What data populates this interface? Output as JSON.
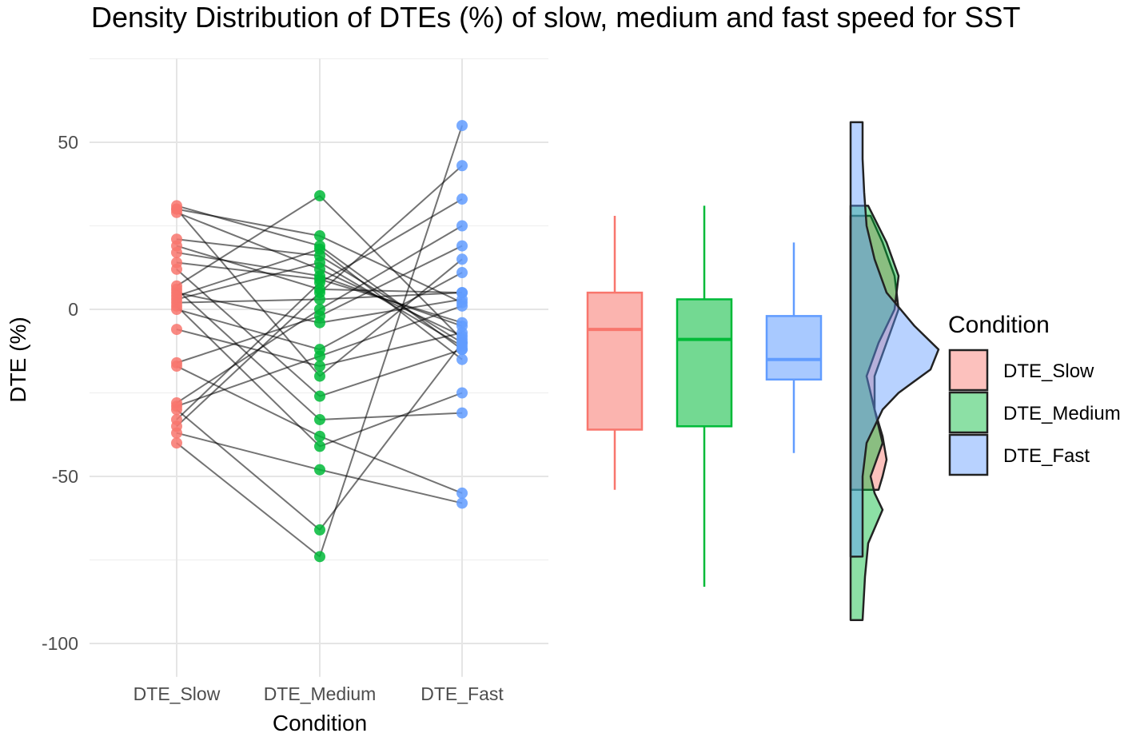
{
  "chart_data": {
    "type": "scatter",
    "title": "Density Distribution of DTEs (%) of slow, medium and fast speed for SST",
    "xlabel": "Condition",
    "ylabel": "DTE (%)",
    "ylim": [
      -110,
      75
    ],
    "yticks": [
      50,
      0,
      -50,
      -100
    ],
    "ytick_labels": [
      "50",
      "0",
      "-50",
      "-100"
    ],
    "categories": [
      "DTE_Slow",
      "DTE_Medium",
      "DTE_Fast"
    ],
    "colors": {
      "DTE_Slow": "#F8766D",
      "DTE_Medium": "#00BA38",
      "DTE_Fast": "#619CFF"
    },
    "legend": {
      "title": "Condition",
      "entries": [
        "DTE_Slow",
        "DTE_Medium",
        "DTE_Fast"
      ],
      "position": "right"
    },
    "paired_observations": [
      {
        "slow": 30,
        "medium": 22,
        "fast": 2
      },
      {
        "slow": 29,
        "medium": 12,
        "fast": -8
      },
      {
        "slow": 31,
        "medium": 19,
        "fast": -12
      },
      {
        "slow": 30,
        "medium": -20,
        "fast": 15
      },
      {
        "slow": 21,
        "medium": 16,
        "fast": -10
      },
      {
        "slow": 19,
        "medium": 6,
        "fast": 5
      },
      {
        "slow": 17,
        "medium": 10,
        "fast": -5
      },
      {
        "slow": 12,
        "medium": -26,
        "fast": -12
      },
      {
        "slow": 7,
        "medium": 34,
        "fast": -9
      },
      {
        "slow": 5,
        "medium": -4,
        "fast": 3
      },
      {
        "slow": 3,
        "medium": 14,
        "fast": -11
      },
      {
        "slow": 0,
        "medium": -12,
        "fast": 11
      },
      {
        "slow": 2,
        "medium": 3,
        "fast": 5
      },
      {
        "slow": -6,
        "medium": -17,
        "fast": -7
      },
      {
        "slow": -16,
        "medium": -2,
        "fast": 19
      },
      {
        "slow": -17,
        "medium": -38,
        "fast": -55
      },
      {
        "slow": -28,
        "medium": 0,
        "fast": 25
      },
      {
        "slow": -30,
        "medium": -66,
        "fast": -10
      },
      {
        "slow": -33,
        "medium": 8,
        "fast": 33
      },
      {
        "slow": -35,
        "medium": 5,
        "fast": 43
      },
      {
        "slow": -37,
        "medium": -48,
        "fast": -58
      },
      {
        "slow": -40,
        "medium": -74,
        "fast": 55
      },
      {
        "slow": 6,
        "medium": -33,
        "fast": -31
      },
      {
        "slow": 1,
        "medium": -41,
        "fast": -25
      },
      {
        "slow": 4,
        "medium": 18,
        "fast": -15
      },
      {
        "slow": -29,
        "medium": -14,
        "fast": 1
      },
      {
        "slow": 14,
        "medium": 9,
        "fast": -4
      }
    ],
    "boxplots": [
      {
        "name": "DTE_Slow",
        "min": -54,
        "q1": -36,
        "median": -6,
        "q3": 5,
        "max": 28
      },
      {
        "name": "DTE_Medium",
        "min": -83,
        "q1": -35,
        "median": -9,
        "q3": 3,
        "max": 31
      },
      {
        "name": "DTE_Fast",
        "min": -43,
        "q1": -21,
        "median": -15,
        "q3": -2,
        "max": 20
      }
    ],
    "densities": [
      {
        "name": "DTE_Slow",
        "range": [
          -54,
          28
        ],
        "points": [
          [
            28,
            0.015
          ],
          [
            20,
            0.03
          ],
          [
            10,
            0.045
          ],
          [
            0,
            0.05
          ],
          [
            -10,
            0.035
          ],
          [
            -20,
            0.02
          ],
          [
            -30,
            0.02
          ],
          [
            -38,
            0.03
          ],
          [
            -45,
            0.035
          ],
          [
            -50,
            0.03
          ],
          [
            -54,
            0.025
          ]
        ]
      },
      {
        "name": "DTE_Medium",
        "range": [
          -93,
          31
        ],
        "points": [
          [
            31,
            0.012
          ],
          [
            20,
            0.035
          ],
          [
            10,
            0.05
          ],
          [
            0,
            0.045
          ],
          [
            -10,
            0.025
          ],
          [
            -20,
            0.01
          ],
          [
            -30,
            0.02
          ],
          [
            -40,
            0.03
          ],
          [
            -50,
            0.015
          ],
          [
            -55,
            0.02
          ],
          [
            -60,
            0.03
          ],
          [
            -70,
            0.012
          ],
          [
            -80,
            0.008
          ],
          [
            -93,
            0.005
          ]
        ]
      },
      {
        "name": "DTE_Fast",
        "range": [
          -74,
          56
        ],
        "points": [
          [
            56,
            0.005
          ],
          [
            45,
            0.005
          ],
          [
            35,
            0.007
          ],
          [
            25,
            0.01
          ],
          [
            15,
            0.02
          ],
          [
            5,
            0.035
          ],
          [
            -5,
            0.07
          ],
          [
            -12,
            0.1
          ],
          [
            -18,
            0.09
          ],
          [
            -25,
            0.05
          ],
          [
            -30,
            0.03
          ],
          [
            -40,
            0.01
          ],
          [
            -50,
            0.005
          ],
          [
            -60,
            0.005
          ],
          [
            -74,
            0.005
          ]
        ]
      }
    ]
  }
}
